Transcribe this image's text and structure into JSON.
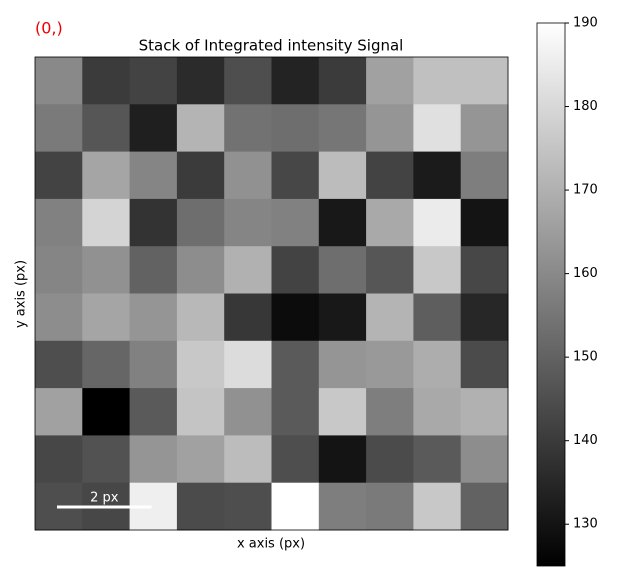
{
  "chart_data": {
    "type": "heatmap",
    "title": "Stack of Integrated intensity Signal",
    "navigation_label": "(0,)",
    "xlabel": "x axis (px)",
    "ylabel": "y axis (px)",
    "colormap": "gray",
    "clim": [
      125,
      190
    ],
    "cticks": [
      130,
      140,
      150,
      160,
      170,
      180,
      190
    ],
    "scalebar": {
      "label": "2 px",
      "length": 2
    },
    "z": [
      [
        160,
        140,
        142,
        136,
        145,
        134,
        140,
        166,
        174,
        174
      ],
      [
        156,
        147,
        133,
        171,
        154,
        153,
        155,
        163,
        182,
        163
      ],
      [
        142,
        167,
        159,
        140,
        162,
        143,
        173,
        142,
        132,
        157
      ],
      [
        158,
        179,
        138,
        153,
        159,
        158,
        131,
        168,
        185,
        130
      ],
      [
        159,
        162,
        150,
        161,
        170,
        142,
        153,
        147,
        176,
        143
      ],
      [
        161,
        167,
        163,
        172,
        139,
        128,
        131,
        171,
        149,
        135
      ],
      [
        145,
        151,
        158,
        176,
        181,
        148,
        163,
        164,
        169,
        144
      ],
      [
        166,
        125,
        148,
        175,
        162,
        148,
        176,
        157,
        168,
        170
      ],
      [
        143,
        146,
        163,
        166,
        173,
        145,
        130,
        144,
        148,
        161
      ],
      [
        145,
        143,
        186,
        144,
        145,
        190,
        157,
        156,
        176,
        150
      ]
    ]
  }
}
